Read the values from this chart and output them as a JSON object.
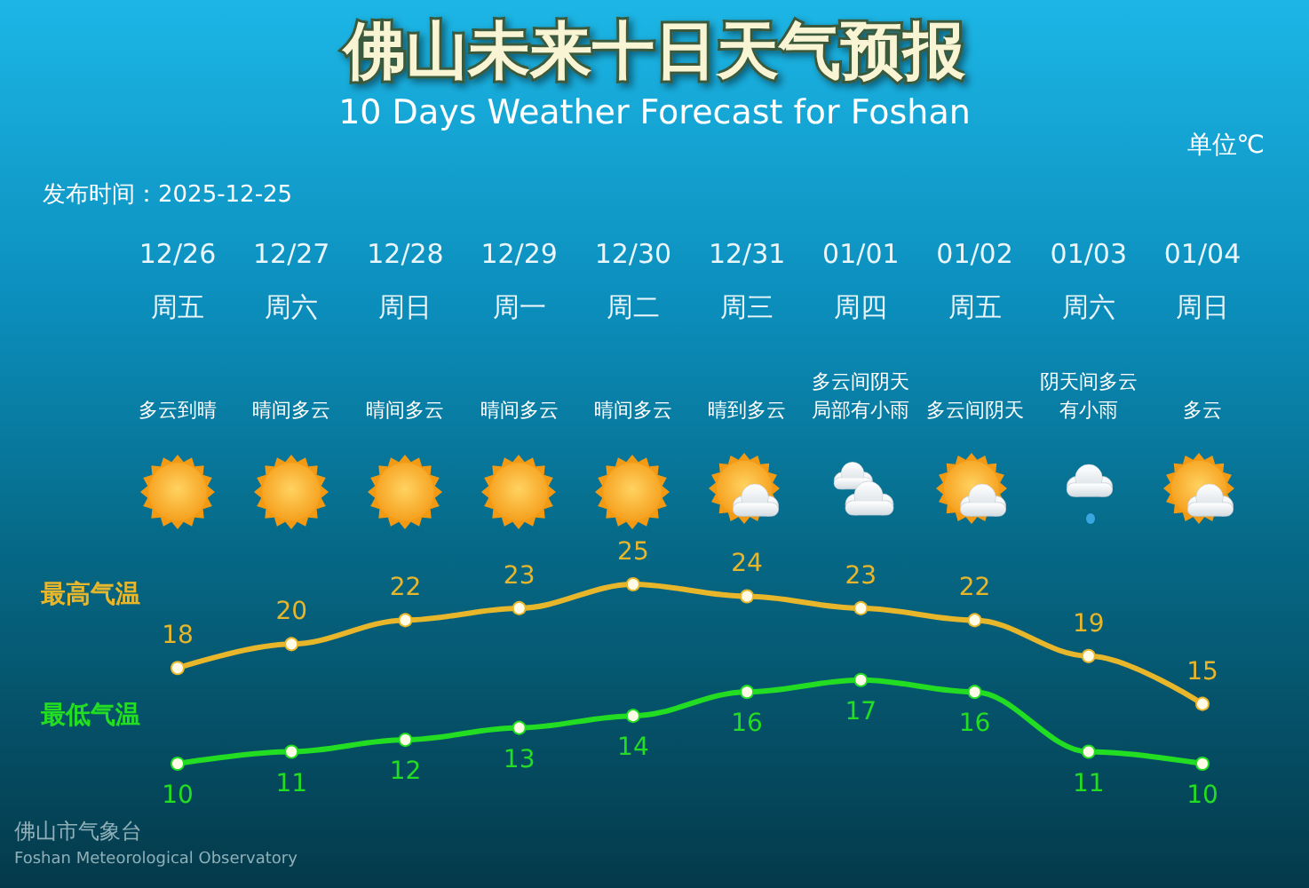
{
  "chart_data": {
    "type": "line",
    "title": "佛山未来十日天气预报",
    "subtitle": "10 Days Weather Forecast for Foshan",
    "ylabel": "单位℃",
    "categories": [
      "12/26\n周五",
      "12/27\n周六",
      "12/28\n周日",
      "12/29\n周一",
      "12/30\n周二",
      "12/31\n周三",
      "01/01\n周四",
      "01/02\n周五",
      "01/03\n周六",
      "01/04\n周日"
    ],
    "series": [
      {
        "name": "最高气温",
        "color": "#e8b62a",
        "values": [
          18,
          20,
          22,
          23,
          25,
          24,
          23,
          22,
          19,
          15
        ]
      },
      {
        "name": "最低气温",
        "color": "#22dd22",
        "values": [
          10,
          11,
          12,
          13,
          14,
          16,
          17,
          16,
          11,
          10
        ]
      }
    ],
    "data_labels": true,
    "marker": "circle",
    "line_style": "solid",
    "legend": "left",
    "tick_labels": "x",
    "annotations": [
      "发布时间：2025-12-25",
      "多云到晴",
      "晴间多云",
      "晴间多云",
      "晴间多云",
      "晴间多云",
      "晴到多云",
      "多云间阴天局部有小雨",
      "多云间阴天",
      "阴天间多云有小雨",
      "多云",
      "佛山市气象台",
      "Foshan Meteorological Observatory"
    ]
  }
}
